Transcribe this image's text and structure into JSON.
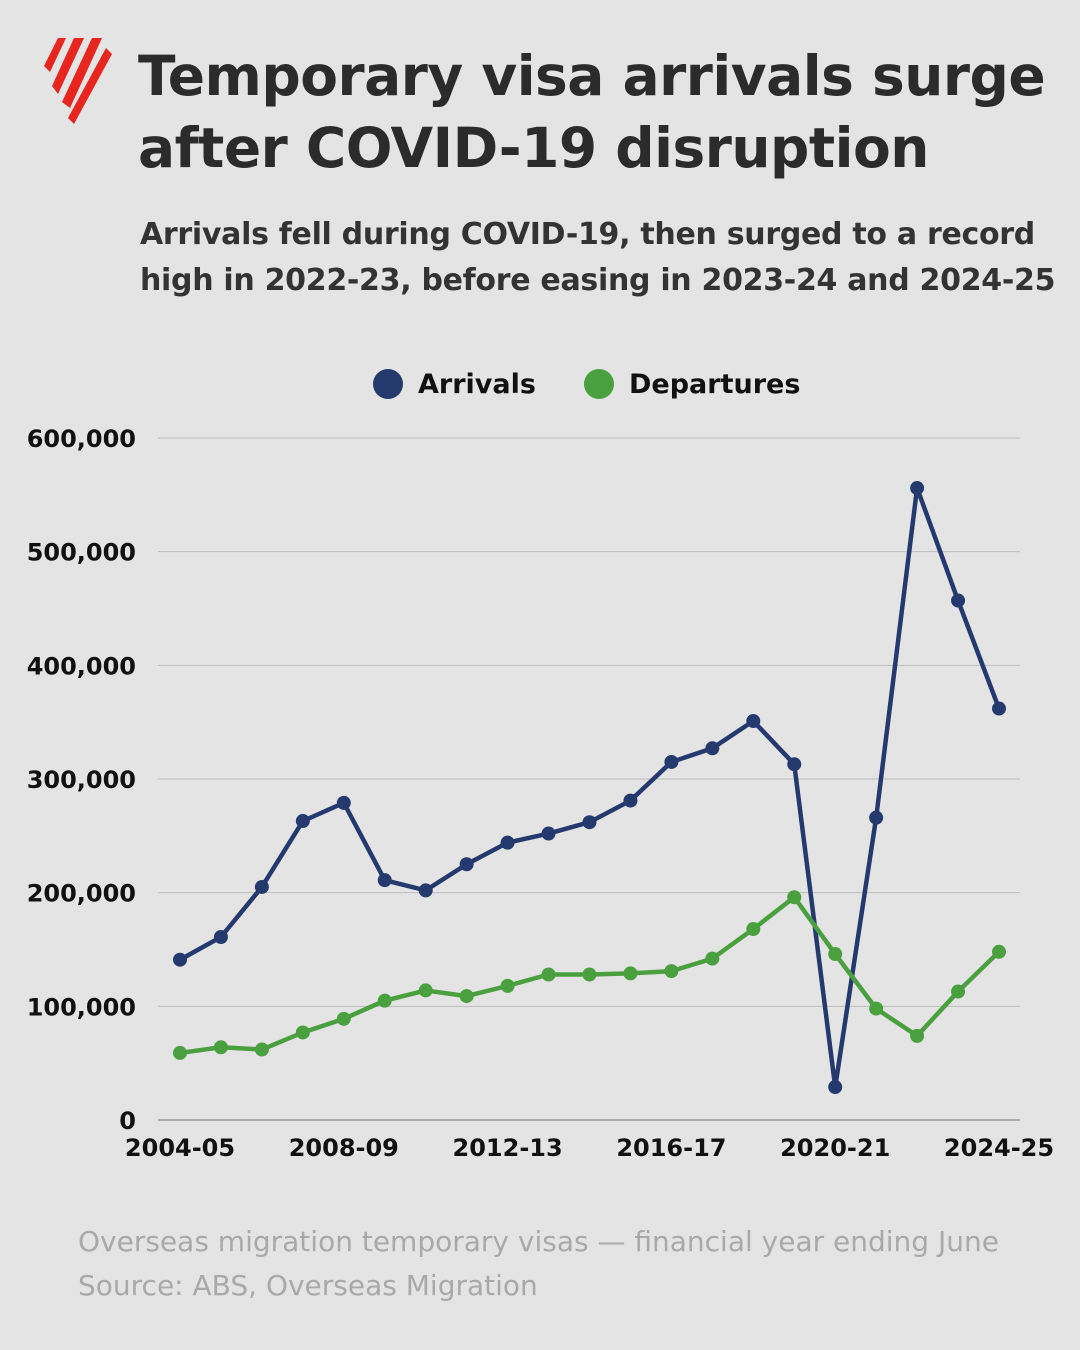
{
  "header": {
    "logo": "SBS",
    "title": "Temporary visa arrivals surge after COVID-19 disruption",
    "subtitle": "Arrivals fell during COVID-19, then surged to a record high in 2022-23, before easing in 2023-24 and 2024-25"
  },
  "footer": {
    "note": "Overseas migration temporary visas — financial year ending June",
    "source": "Source: ABS, Overseas Migration"
  },
  "colors": {
    "arrivals": "#243a6e",
    "departures": "#4aa03f",
    "logo": "#e8261f",
    "background": "#e4e4e4"
  },
  "chart_data": {
    "type": "line",
    "title": "Temporary visa arrivals surge after COVID-19 disruption",
    "xlabel": "",
    "ylabel": "",
    "ylim": [
      0,
      600000
    ],
    "yticks": [
      0,
      100000,
      200000,
      300000,
      400000,
      500000,
      600000
    ],
    "ytick_labels": [
      "0",
      "100,000",
      "200,000",
      "300,000",
      "400,000",
      "500,000",
      "600,000"
    ],
    "grid": true,
    "legend": "top-center",
    "categories": [
      "2004-05",
      "2005-06",
      "2006-07",
      "2007-08",
      "2008-09",
      "2009-10",
      "2010-11",
      "2011-12",
      "2012-13",
      "2013-14",
      "2014-15",
      "2015-16",
      "2016-17",
      "2017-18",
      "2018-19",
      "2019-20",
      "2020-21",
      "2021-22",
      "2022-23",
      "2023-24",
      "2024-25"
    ],
    "xtick_labels": [
      "2004-05",
      "2008-09",
      "2012-13",
      "2016-17",
      "2020-21",
      "2024-25"
    ],
    "series": [
      {
        "name": "Arrivals",
        "color": "#243a6e",
        "values": [
          141000,
          161000,
          205000,
          263000,
          279000,
          211000,
          202000,
          225000,
          244000,
          252000,
          262000,
          281000,
          315000,
          327000,
          351000,
          313000,
          29000,
          266000,
          556000,
          457000,
          362000
        ]
      },
      {
        "name": "Departures",
        "color": "#4aa03f",
        "values": [
          59000,
          64000,
          62000,
          77000,
          89000,
          105000,
          114000,
          109000,
          118000,
          128000,
          128000,
          129000,
          131000,
          142000,
          168000,
          196000,
          146000,
          98000,
          74000,
          113000,
          148000
        ]
      }
    ]
  }
}
